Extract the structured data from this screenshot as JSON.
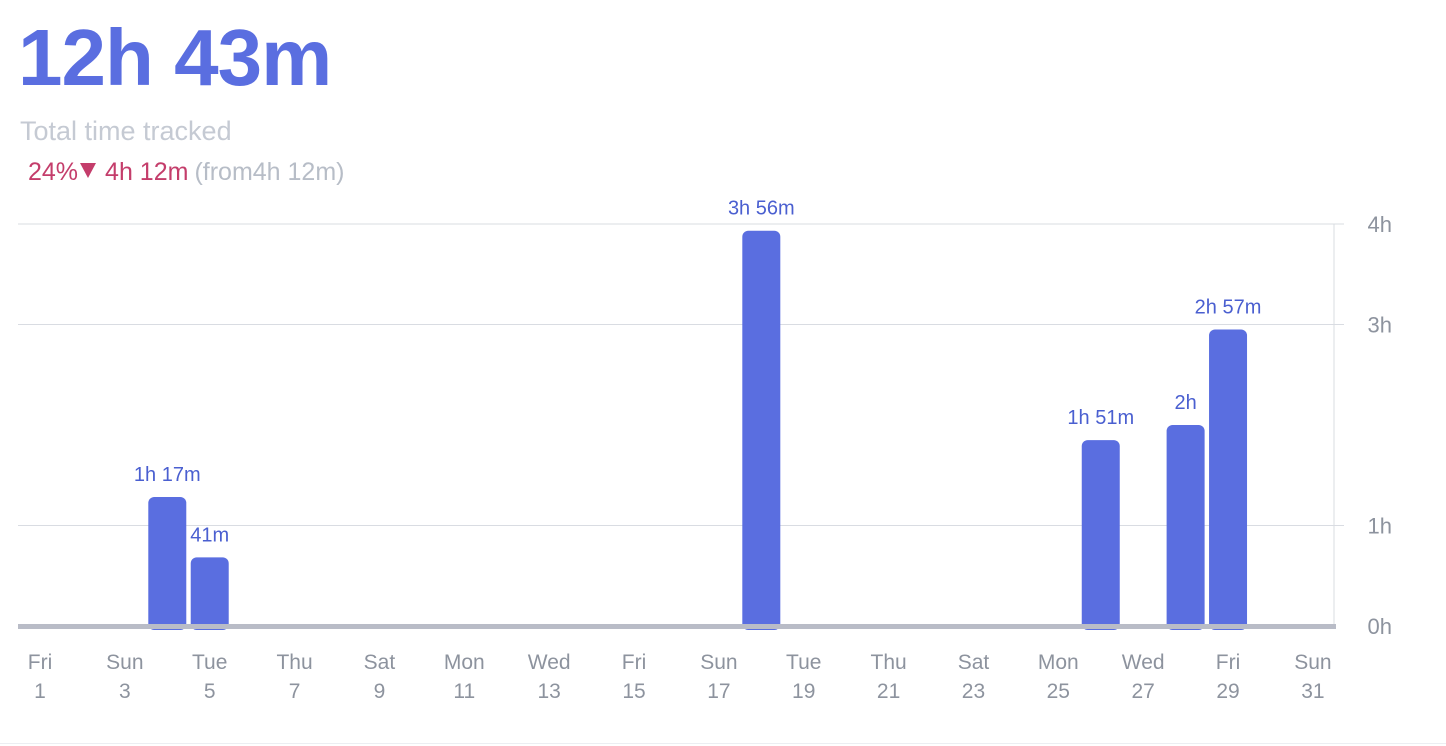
{
  "summary": {
    "total": "12h 43m",
    "label": "Total time tracked",
    "change_percent": "24%",
    "change_amount": "4h 12m",
    "change_from": "(from4h 12m)",
    "change_direction": "down",
    "colors": {
      "accent": "#5a6ee0",
      "negative": "#c43d6b",
      "muted": "#c5cad3"
    }
  },
  "chart_data": {
    "type": "bar",
    "x": [
      1,
      2,
      3,
      4,
      5,
      6,
      7,
      8,
      9,
      10,
      11,
      12,
      13,
      14,
      15,
      16,
      17,
      18,
      19,
      20,
      21,
      22,
      23,
      24,
      25,
      26,
      27,
      28,
      29,
      30,
      31
    ],
    "values": [
      0,
      0,
      0,
      1.2833,
      0.6833,
      0,
      0,
      0,
      0,
      0,
      0,
      0,
      0,
      0,
      0,
      0,
      0,
      3.9333,
      0,
      0,
      0,
      0,
      0,
      0,
      0,
      1.85,
      0,
      2,
      2.95,
      0,
      0
    ],
    "value_labels": [
      "",
      "",
      "",
      "1h 17m",
      "41m",
      "",
      "",
      "",
      "",
      "",
      "",
      "",
      "",
      "",
      "",
      "",
      "",
      "3h 56m",
      "",
      "",
      "",
      "",
      "",
      "",
      "",
      "1h 51m",
      "",
      "2h",
      "2h 57m",
      "",
      ""
    ],
    "x_ticks": [
      {
        "x": 1,
        "day": "Fri",
        "date": "1"
      },
      {
        "x": 3,
        "day": "Sun",
        "date": "3"
      },
      {
        "x": 5,
        "day": "Tue",
        "date": "5"
      },
      {
        "x": 7,
        "day": "Thu",
        "date": "7"
      },
      {
        "x": 9,
        "day": "Sat",
        "date": "9"
      },
      {
        "x": 11,
        "day": "Mon",
        "date": "11"
      },
      {
        "x": 13,
        "day": "Wed",
        "date": "13"
      },
      {
        "x": 15,
        "day": "Fri",
        "date": "15"
      },
      {
        "x": 17,
        "day": "Sun",
        "date": "17"
      },
      {
        "x": 19,
        "day": "Tue",
        "date": "19"
      },
      {
        "x": 21,
        "day": "Thu",
        "date": "21"
      },
      {
        "x": 23,
        "day": "Sat",
        "date": "23"
      },
      {
        "x": 25,
        "day": "Mon",
        "date": "25"
      },
      {
        "x": 27,
        "day": "Wed",
        "date": "27"
      },
      {
        "x": 29,
        "day": "Fri",
        "date": "29"
      },
      {
        "x": 31,
        "day": "Sun",
        "date": "31"
      }
    ],
    "y_ticks": [
      {
        "value": 0,
        "label": "0h"
      },
      {
        "value": 1,
        "label": "1h"
      },
      {
        "value": 3,
        "label": "3h"
      },
      {
        "value": 4,
        "label": "4h"
      }
    ],
    "ylim": [
      0,
      4
    ],
    "y_axis_side": "right",
    "grid": true,
    "bar_color": "#5a6ee0",
    "label_color": "#4a5fd0"
  }
}
